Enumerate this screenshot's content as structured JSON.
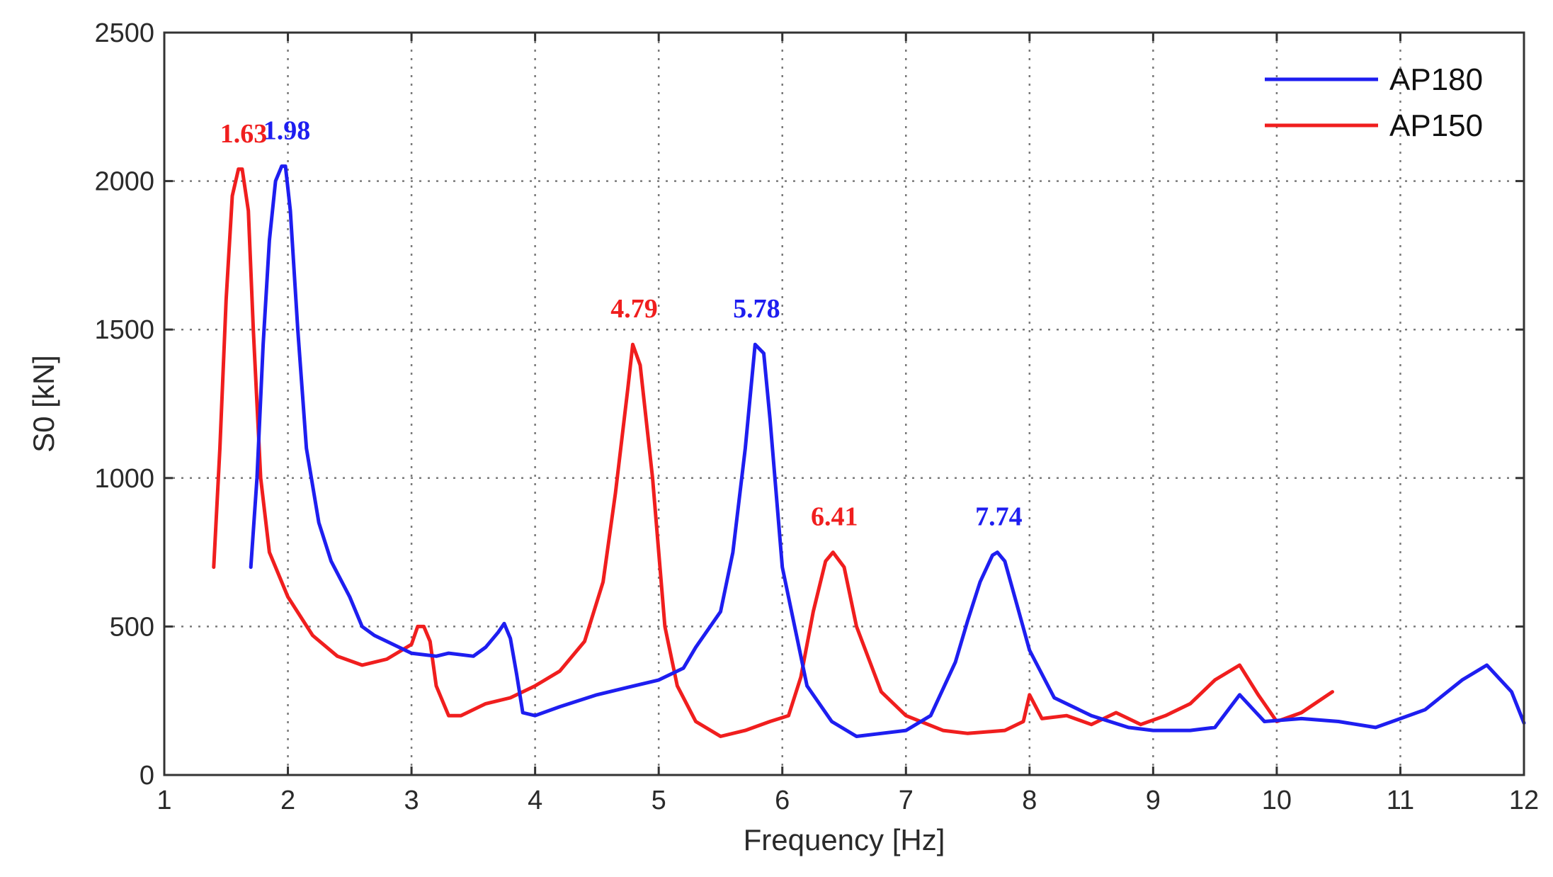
{
  "chart_data": {
    "type": "line",
    "title": "",
    "xlabel": "Frequency [Hz]",
    "ylabel": "S0 [kN]",
    "xlim": [
      1,
      12
    ],
    "ylim": [
      0,
      2500
    ],
    "xticks": [
      1,
      2,
      3,
      4,
      5,
      6,
      7,
      8,
      9,
      10,
      11,
      12
    ],
    "yticks": [
      0,
      500,
      1000,
      1500,
      2000,
      2500
    ],
    "xtick_labels": [
      "1",
      "2",
      "3",
      "4",
      "5",
      "6",
      "7",
      "8",
      "9",
      "10",
      "11",
      "12"
    ],
    "ytick_labels": [
      "0",
      "500",
      "1000",
      "1500",
      "2000",
      "2500"
    ],
    "grid": true,
    "legend_position": "top-right",
    "colors": {
      "AP180": "#1e1ef0",
      "AP150": "#f01e1e",
      "axis": "#333333"
    },
    "series": [
      {
        "name": "AP180",
        "color": "#1e1ef0",
        "x": [
          1.7,
          1.75,
          1.8,
          1.85,
          1.9,
          1.95,
          1.98,
          2.02,
          2.08,
          2.15,
          2.25,
          2.35,
          2.5,
          2.6,
          2.7,
          2.8,
          3.0,
          3.2,
          3.3,
          3.5,
          3.6,
          3.7,
          3.75,
          3.8,
          3.85,
          3.9,
          4.0,
          4.2,
          4.5,
          4.8,
          5.0,
          5.2,
          5.3,
          5.5,
          5.6,
          5.7,
          5.78,
          5.85,
          5.9,
          6.0,
          6.2,
          6.4,
          6.6,
          6.8,
          7.0,
          7.2,
          7.4,
          7.5,
          7.6,
          7.7,
          7.74,
          7.8,
          7.9,
          8.0,
          8.2,
          8.5,
          8.8,
          9.0,
          9.3,
          9.5,
          9.7,
          9.9,
          10.2,
          10.5,
          10.8,
          11.0,
          11.2,
          11.5,
          11.7,
          11.9,
          12.0
        ],
        "y": [
          700,
          1000,
          1450,
          1800,
          2000,
          2050,
          2050,
          1900,
          1500,
          1100,
          850,
          720,
          600,
          500,
          470,
          450,
          410,
          400,
          410,
          400,
          430,
          480,
          510,
          460,
          340,
          210,
          200,
          230,
          270,
          300,
          320,
          360,
          430,
          550,
          750,
          1100,
          1450,
          1420,
          1200,
          700,
          300,
          180,
          130,
          140,
          150,
          200,
          380,
          520,
          650,
          740,
          750,
          720,
          570,
          420,
          260,
          200,
          160,
          150,
          150,
          160,
          270,
          180,
          190,
          180,
          160,
          190,
          220,
          320,
          370,
          280,
          175
        ]
      },
      {
        "name": "AP150",
        "color": "#f01e1e",
        "x": [
          1.4,
          1.45,
          1.5,
          1.55,
          1.6,
          1.63,
          1.68,
          1.72,
          1.78,
          1.85,
          2.0,
          2.2,
          2.4,
          2.6,
          2.8,
          3.0,
          3.05,
          3.1,
          3.15,
          3.2,
          3.3,
          3.4,
          3.6,
          3.8,
          4.0,
          4.2,
          4.4,
          4.55,
          4.65,
          4.75,
          4.79,
          4.85,
          4.95,
          5.05,
          5.15,
          5.3,
          5.5,
          5.7,
          5.9,
          6.05,
          6.15,
          6.25,
          6.35,
          6.41,
          6.5,
          6.6,
          6.8,
          7.0,
          7.3,
          7.5,
          7.8,
          7.95,
          8.0,
          8.1,
          8.3,
          8.5,
          8.7,
          8.9,
          9.1,
          9.3,
          9.5,
          9.7,
          9.85,
          10.0,
          10.2,
          10.45
        ],
        "y": [
          700,
          1100,
          1600,
          1950,
          2040,
          2040,
          1900,
          1500,
          1000,
          750,
          600,
          470,
          400,
          370,
          390,
          440,
          500,
          500,
          450,
          300,
          200,
          200,
          240,
          260,
          300,
          350,
          450,
          650,
          950,
          1300,
          1450,
          1380,
          1000,
          500,
          300,
          180,
          130,
          150,
          180,
          200,
          330,
          550,
          720,
          750,
          700,
          500,
          280,
          200,
          150,
          140,
          150,
          180,
          270,
          190,
          200,
          170,
          210,
          170,
          200,
          240,
          320,
          370,
          270,
          180,
          210,
          280
        ]
      }
    ],
    "annotations": [
      {
        "text": "1.63",
        "x": 1.63,
        "y": 2040,
        "series": "AP150"
      },
      {
        "text": "1.98",
        "x": 1.98,
        "y": 2050,
        "series": "AP180"
      },
      {
        "text": "4.79",
        "x": 4.79,
        "y": 1450,
        "series": "AP150"
      },
      {
        "text": "5.78",
        "x": 5.78,
        "y": 1450,
        "series": "AP180"
      },
      {
        "text": "6.41",
        "x": 6.41,
        "y": 750,
        "series": "AP150"
      },
      {
        "text": "7.74",
        "x": 7.74,
        "y": 750,
        "series": "AP180"
      }
    ]
  }
}
